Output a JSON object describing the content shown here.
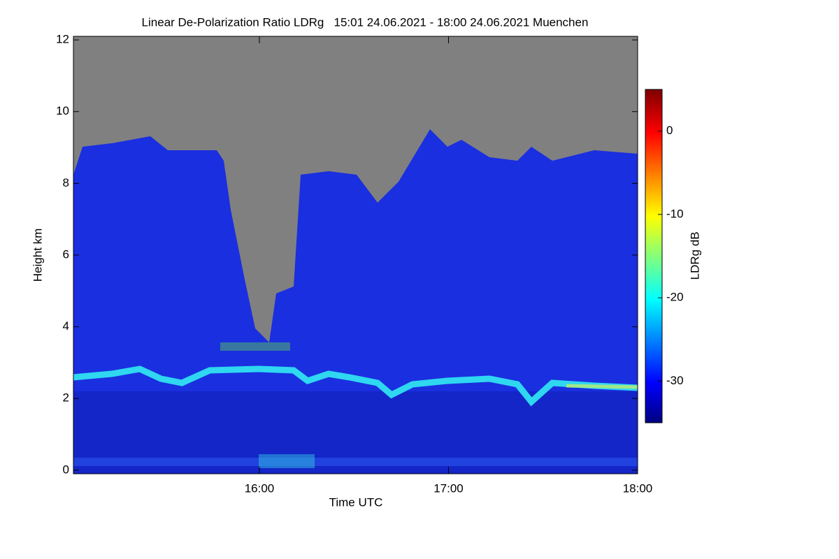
{
  "chart_data": {
    "type": "heatmap",
    "title": "Linear De-Polarization Ratio LDRg   15:01 24.06.2021 - 18:00 24.06.2021 Muenchen",
    "x_label": "Time UTC",
    "y_label": "Height km",
    "xlim": [
      15.0167,
      18.0
    ],
    "xticks": [
      {
        "value": 16,
        "label": "16:00"
      },
      {
        "value": 17,
        "label": "17:00"
      },
      {
        "value": 18,
        "label": "18:00"
      }
    ],
    "ylim": [
      -0.1,
      12.1
    ],
    "yticks": [
      0,
      2,
      4,
      6,
      8,
      10,
      12
    ],
    "colorbar_label": "LDRg dB",
    "clim": [
      -35,
      5
    ],
    "cticks": [
      0,
      -10,
      -20,
      -30
    ]
  }
}
